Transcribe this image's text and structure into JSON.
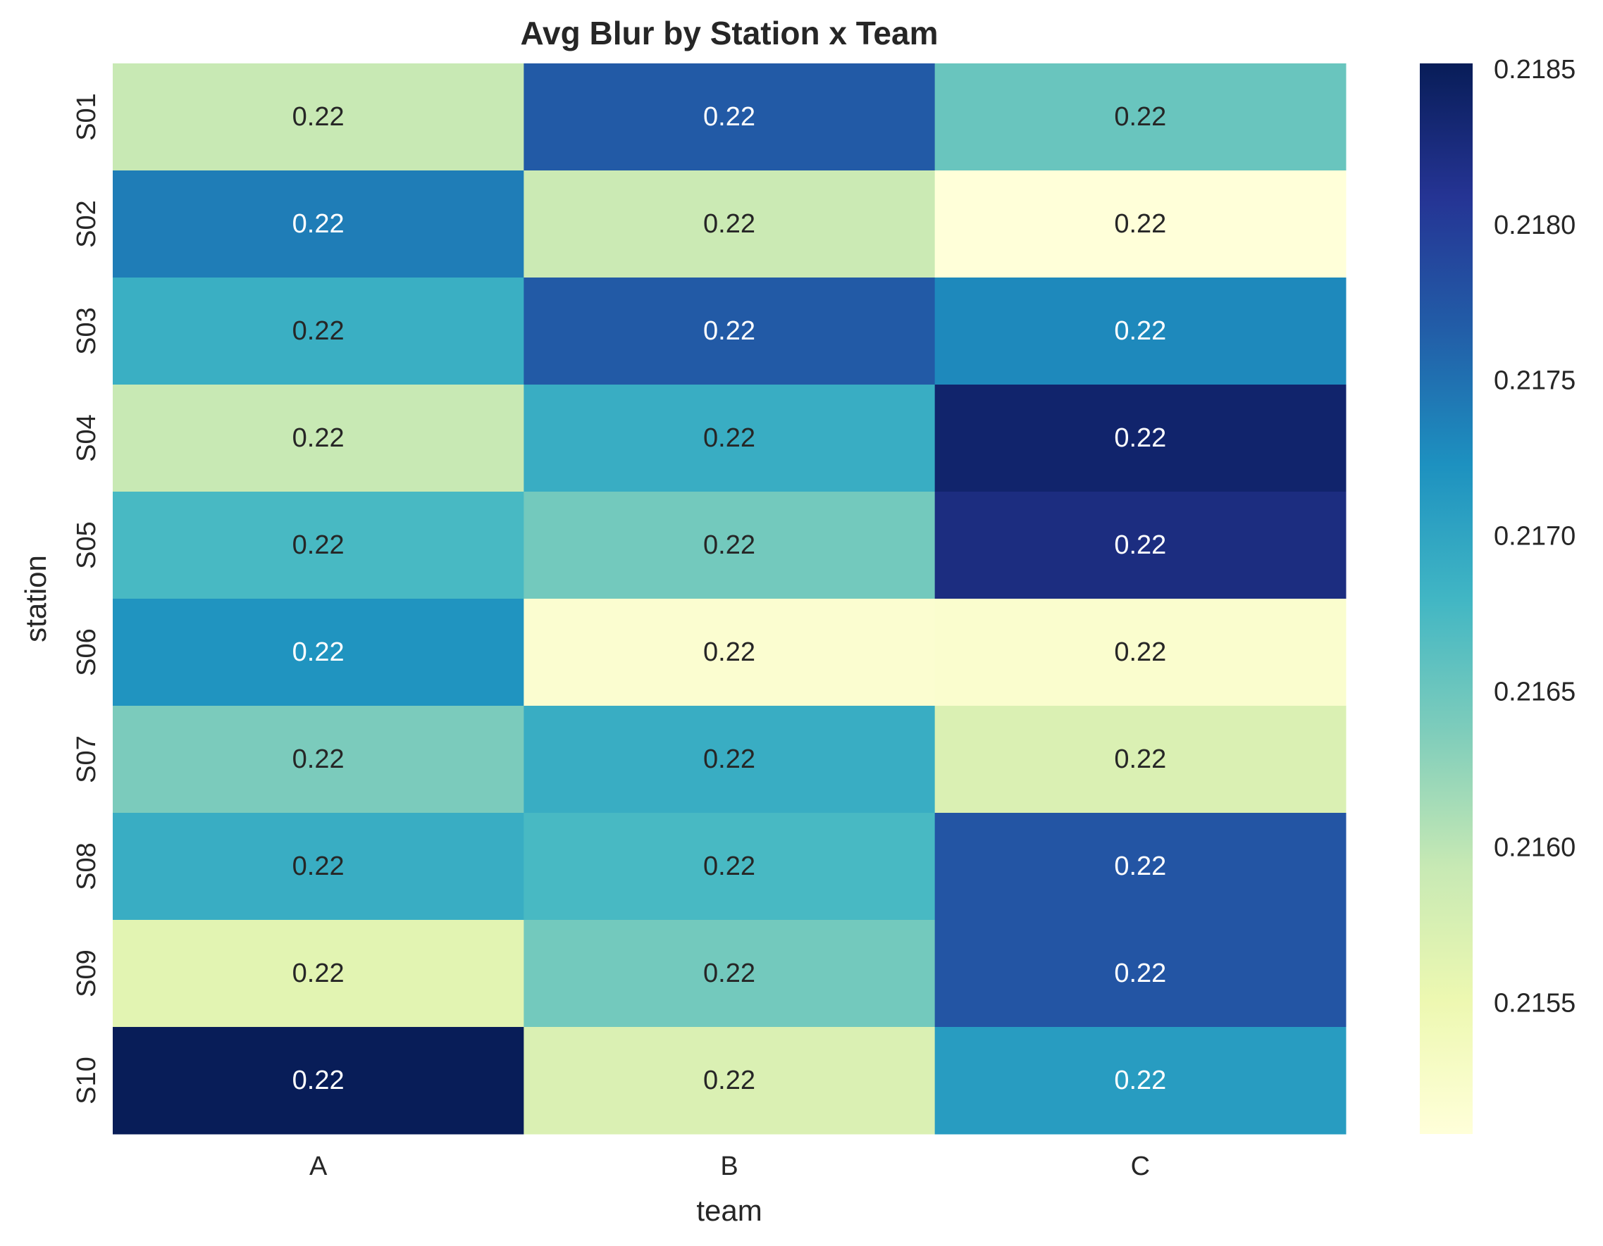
{
  "chart_data": {
    "type": "heatmap",
    "title": "Avg Blur by Station x Team",
    "xlabel": "team",
    "ylabel": "station",
    "x_categories": [
      "A",
      "B",
      "C"
    ],
    "y_categories": [
      "S01",
      "S02",
      "S03",
      "S04",
      "S05",
      "S06",
      "S07",
      "S08",
      "S09",
      "S10"
    ],
    "values": [
      [
        0.21593,
        0.2177,
        0.21652
      ],
      [
        0.2174,
        0.2159,
        0.21508
      ],
      [
        0.21688,
        0.2177,
        0.2173
      ],
      [
        0.21593,
        0.2169,
        0.21838
      ],
      [
        0.21675,
        0.21645,
        0.21823
      ],
      [
        0.2172,
        0.21518,
        0.2152
      ],
      [
        0.2164,
        0.2169,
        0.21573
      ],
      [
        0.2169,
        0.21675,
        0.21775
      ],
      [
        0.21563,
        0.21645,
        0.21775
      ],
      [
        0.21852,
        0.21573,
        0.2171
      ]
    ],
    "cell_annotations": [
      [
        "0.22",
        "0.22",
        "0.22"
      ],
      [
        "0.22",
        "0.22",
        "0.22"
      ],
      [
        "0.22",
        "0.22",
        "0.22"
      ],
      [
        "0.22",
        "0.22",
        "0.22"
      ],
      [
        "0.22",
        "0.22",
        "0.22"
      ],
      [
        "0.22",
        "0.22",
        "0.22"
      ],
      [
        "0.22",
        "0.22",
        "0.22"
      ],
      [
        "0.22",
        "0.22",
        "0.22"
      ],
      [
        "0.22",
        "0.22",
        "0.22"
      ],
      [
        "0.22",
        "0.22",
        "0.22"
      ]
    ],
    "colormap": "YlGnBu",
    "colormap_stops": [
      "#ffffd9",
      "#edf8b1",
      "#c7e9b4",
      "#7fcdbb",
      "#41b6c4",
      "#1d91c0",
      "#225ea8",
      "#253494",
      "#081d58"
    ],
    "color_range": [
      0.21508,
      0.21852
    ],
    "colorbar_ticks": [
      0.2155,
      0.216,
      0.2165,
      0.217,
      0.2175,
      0.218,
      0.2185
    ],
    "colorbar_tick_labels": [
      "0.2155",
      "0.2160",
      "0.2165",
      "0.2170",
      "0.2175",
      "0.2180",
      "0.2185"
    ],
    "text_color_dark": "#262626",
    "text_color_light": "#ffffff"
  }
}
